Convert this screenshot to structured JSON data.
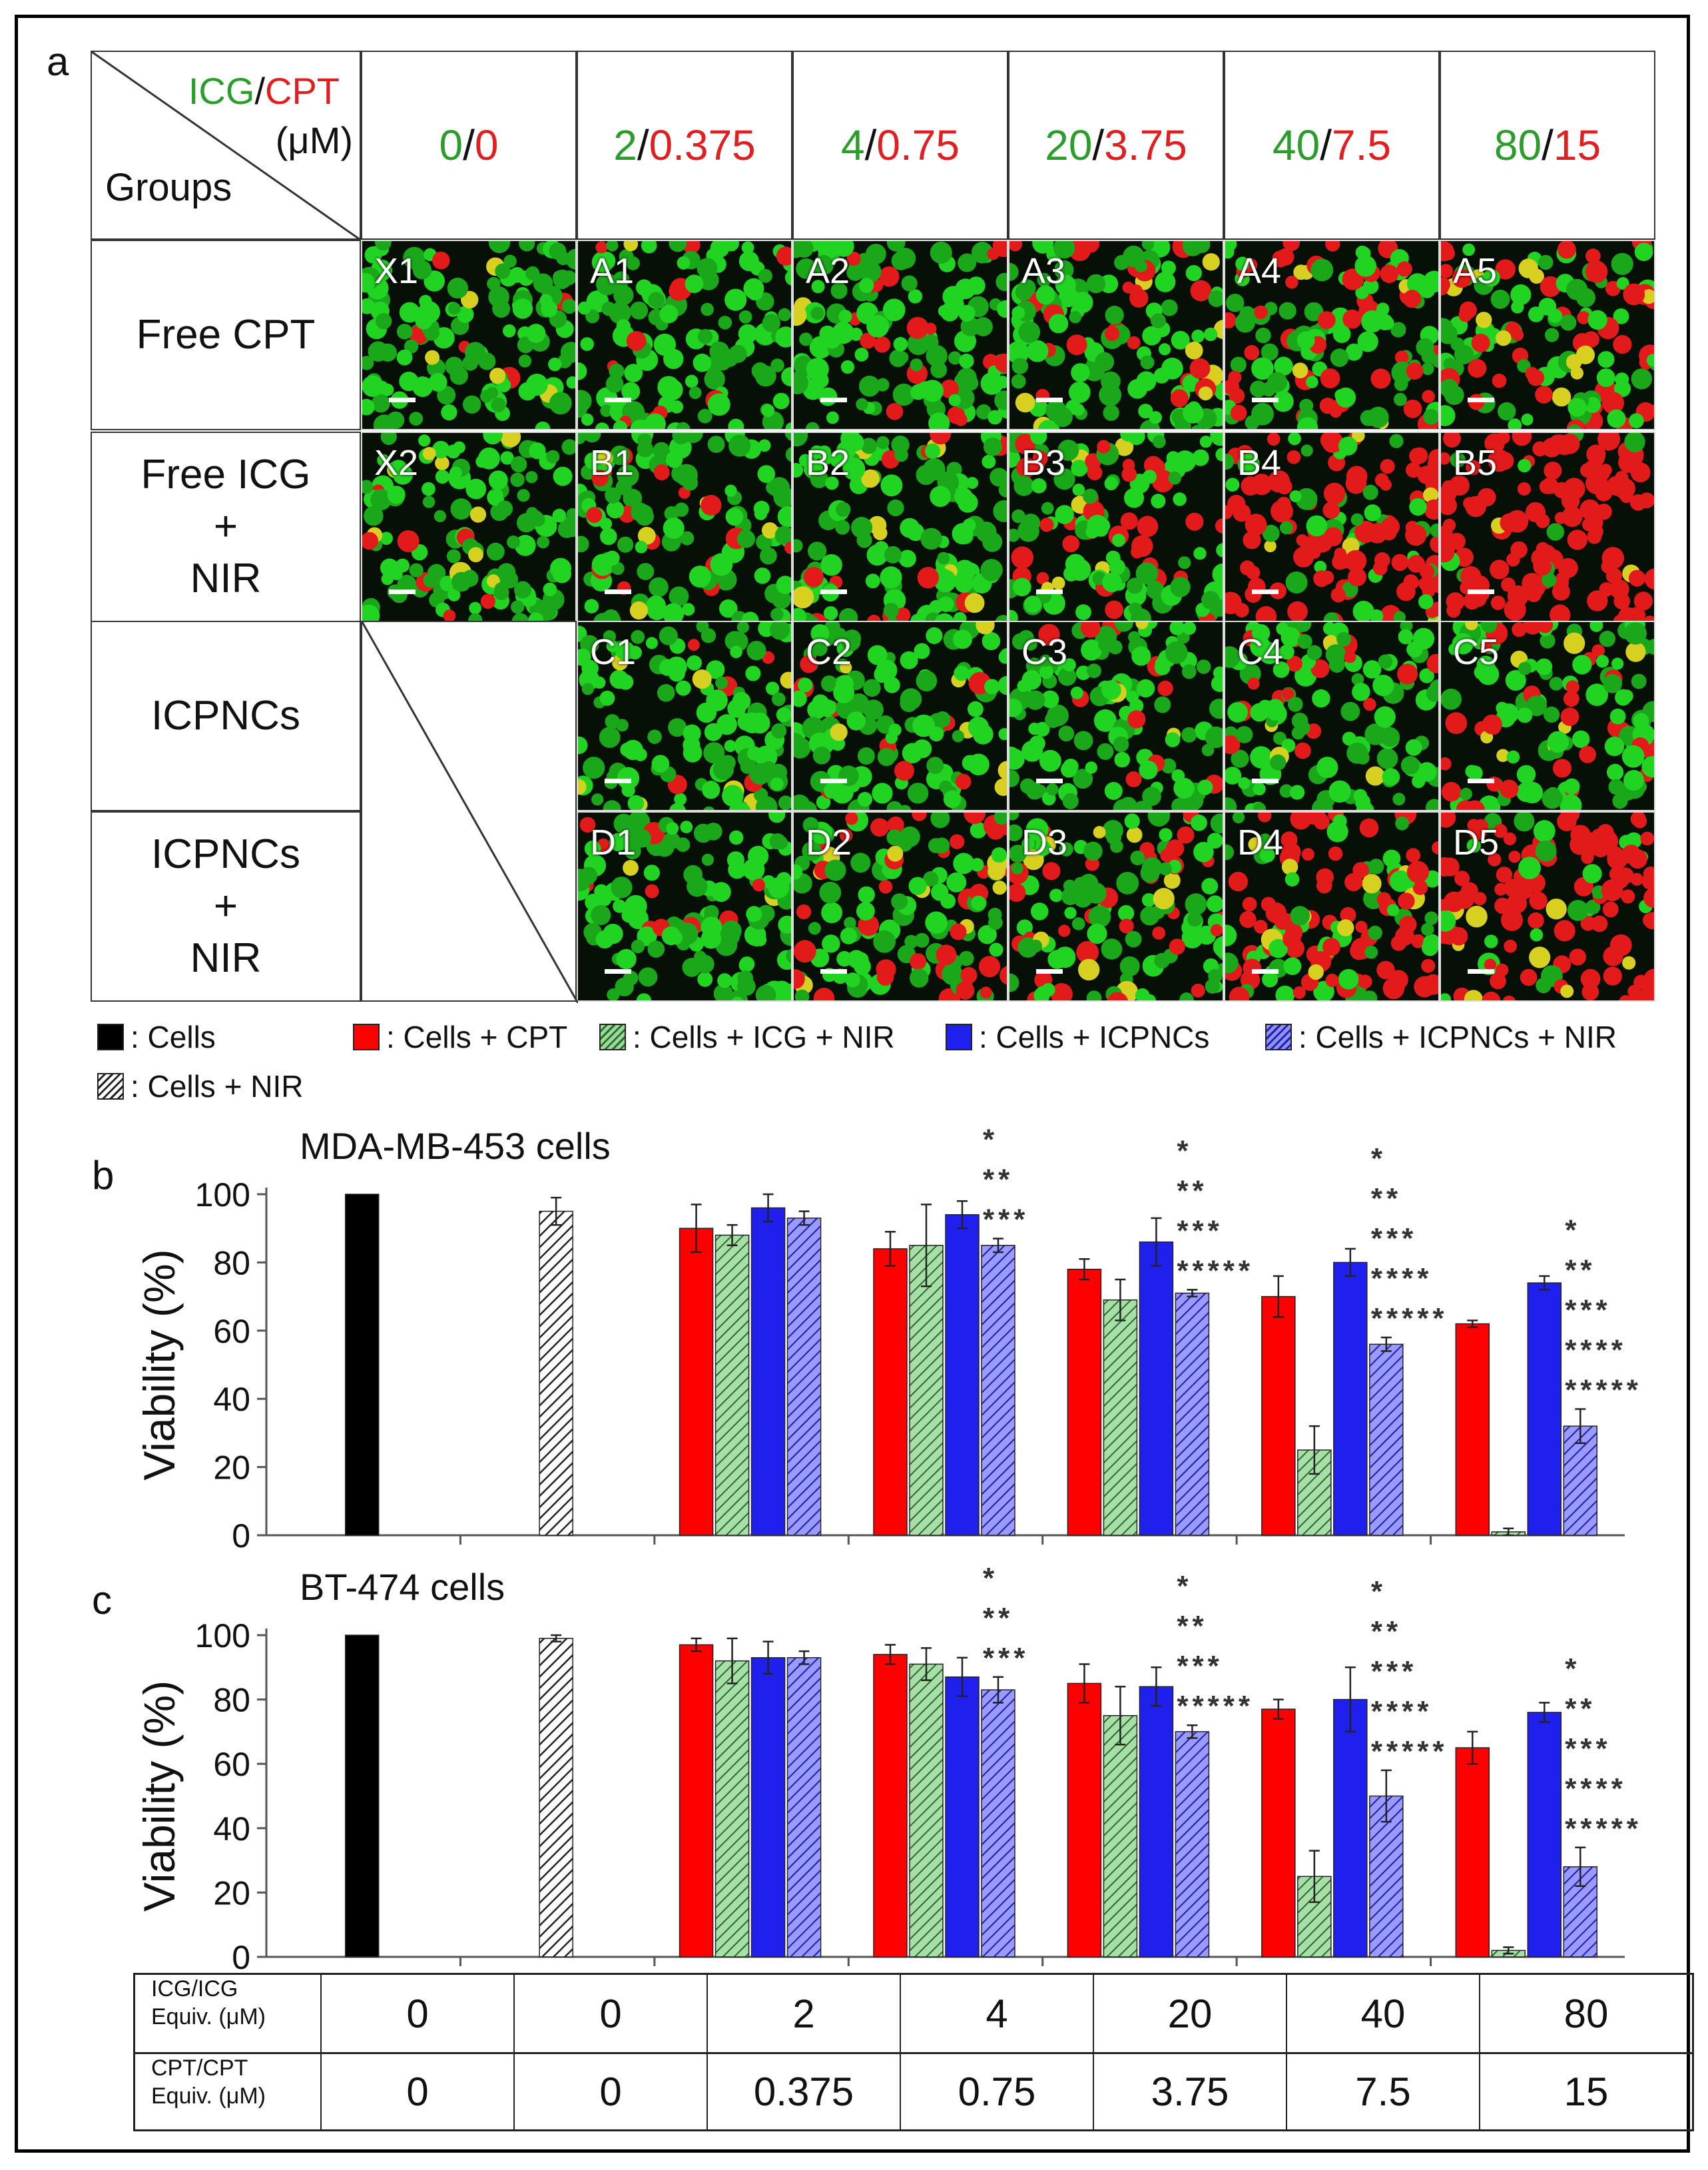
{
  "panel_labels": {
    "a": "a",
    "b": "b",
    "c": "c"
  },
  "grid": {
    "corner": {
      "icg": "ICG",
      "slash": "/",
      "cpt": "CPT",
      "unit": "(μM)",
      "groups": "Groups"
    },
    "columns": [
      {
        "icg": "0",
        "cpt": "0"
      },
      {
        "icg": "2",
        "cpt": "0.375"
      },
      {
        "icg": "4",
        "cpt": "0.75"
      },
      {
        "icg": "20",
        "cpt": "3.75"
      },
      {
        "icg": "40",
        "cpt": "7.5"
      },
      {
        "icg": "80",
        "cpt": "15"
      }
    ],
    "rows": [
      {
        "label_lines": [
          "Free CPT"
        ],
        "tags": [
          "X1",
          "A1",
          "A2",
          "A3",
          "A4",
          "A5"
        ]
      },
      {
        "label_lines": [
          "Free ICG",
          "+",
          "NIR"
        ],
        "tags": [
          "X2",
          "B1",
          "B2",
          "B3",
          "B4",
          "B5"
        ]
      },
      {
        "label_lines": [
          "ICPNCs"
        ],
        "tags": [
          "",
          "C1",
          "C2",
          "C3",
          "C4",
          "C5"
        ]
      },
      {
        "label_lines": [
          "ICPNCs",
          "+",
          "NIR"
        ],
        "tags": [
          "",
          "D1",
          "D2",
          "D3",
          "D4",
          "D5"
        ]
      }
    ],
    "red_fraction": [
      [
        0.04,
        0.1,
        0.14,
        0.22,
        0.35,
        0.4
      ],
      [
        0.06,
        0.08,
        0.12,
        0.3,
        0.65,
        0.9
      ],
      [
        null,
        0.05,
        0.06,
        0.1,
        0.12,
        0.25
      ],
      [
        null,
        0.08,
        0.25,
        0.35,
        0.5,
        0.75
      ]
    ]
  },
  "legend": {
    "cells": ": Cells",
    "cells_cpt": ": Cells + CPT",
    "cells_icg_nir": ": Cells + ICG + NIR",
    "cells_icpncs": ": Cells + ICPNCs",
    "cells_icpncs_nir": ": Cells + ICPNCs + NIR",
    "cells_nir": ": Cells + NIR"
  },
  "colors": {
    "black": "#000000",
    "cpt": "#ff0000",
    "icg": "#9cd99c",
    "icpnc": "#2020ee",
    "icpnc_nir": "#8f8fff",
    "nir": "#bbbbbb"
  },
  "table": {
    "row1_label": [
      "ICG/ICG",
      "Equiv. (μM)"
    ],
    "row2_label": [
      "CPT/CPT",
      "Equiv. (μM)"
    ],
    "row1": [
      "0",
      "0",
      "2",
      "4",
      "20",
      "40",
      "80"
    ],
    "row2": [
      "0",
      "0",
      "0.375",
      "0.75",
      "3.75",
      "7.5",
      "15"
    ]
  },
  "chart_data": [
    {
      "type": "bar",
      "title": "MDA-MB-453 cells",
      "ylabel": "Viability (%)",
      "ylim": [
        0,
        100
      ],
      "yticks": [
        0,
        20,
        40,
        60,
        80,
        100
      ],
      "groups": [
        {
          "bars": [
            {
              "series": "Cells",
              "value": 100,
              "err": 0
            }
          ]
        },
        {
          "bars": [
            {
              "series": "Cells + NIR",
              "value": 95,
              "err": 4
            }
          ]
        },
        {
          "bars": [
            {
              "series": "Cells + CPT",
              "value": 90,
              "err": 7
            },
            {
              "series": "Cells + ICG + NIR",
              "value": 88,
              "err": 3
            },
            {
              "series": "Cells + ICPNCs",
              "value": 96,
              "err": 4
            },
            {
              "series": "Cells + ICPNCs + NIR",
              "value": 93,
              "err": 2
            }
          ],
          "stars": []
        },
        {
          "bars": [
            {
              "series": "Cells + CPT",
              "value": 84,
              "err": 5
            },
            {
              "series": "Cells + ICG + NIR",
              "value": 85,
              "err": 12
            },
            {
              "series": "Cells + ICPNCs",
              "value": 94,
              "err": 4
            },
            {
              "series": "Cells + ICPNCs + NIR",
              "value": 85,
              "err": 2
            }
          ],
          "stars": [
            "*",
            "**",
            "***"
          ]
        },
        {
          "bars": [
            {
              "series": "Cells + CPT",
              "value": 78,
              "err": 3
            },
            {
              "series": "Cells + ICG + NIR",
              "value": 69,
              "err": 6
            },
            {
              "series": "Cells + ICPNCs",
              "value": 86,
              "err": 7
            },
            {
              "series": "Cells + ICPNCs + NIR",
              "value": 71,
              "err": 1
            }
          ],
          "stars": [
            "*",
            "**",
            "***",
            "*****"
          ]
        },
        {
          "bars": [
            {
              "series": "Cells + CPT",
              "value": 70,
              "err": 6
            },
            {
              "series": "Cells + ICG + NIR",
              "value": 25,
              "err": 7
            },
            {
              "series": "Cells + ICPNCs",
              "value": 80,
              "err": 4
            },
            {
              "series": "Cells + ICPNCs + NIR",
              "value": 56,
              "err": 2
            }
          ],
          "stars": [
            "*",
            "**",
            "***",
            "****",
            "*****"
          ]
        },
        {
          "bars": [
            {
              "series": "Cells + CPT",
              "value": 62,
              "err": 1
            },
            {
              "series": "Cells + ICG + NIR",
              "value": 1,
              "err": 1
            },
            {
              "series": "Cells + ICPNCs",
              "value": 74,
              "err": 2
            },
            {
              "series": "Cells + ICPNCs + NIR",
              "value": 32,
              "err": 5
            }
          ],
          "stars": [
            "*",
            "**",
            "***",
            "****",
            "*****"
          ]
        }
      ]
    },
    {
      "type": "bar",
      "title": "BT-474 cells",
      "ylabel": "Viability (%)",
      "ylim": [
        0,
        100
      ],
      "yticks": [
        0,
        20,
        40,
        60,
        80,
        100
      ],
      "groups": [
        {
          "bars": [
            {
              "series": "Cells",
              "value": 100,
              "err": 0
            }
          ]
        },
        {
          "bars": [
            {
              "series": "Cells + NIR",
              "value": 99,
              "err": 1
            }
          ]
        },
        {
          "bars": [
            {
              "series": "Cells + CPT",
              "value": 97,
              "err": 2
            },
            {
              "series": "Cells + ICG + NIR",
              "value": 92,
              "err": 7
            },
            {
              "series": "Cells + ICPNCs",
              "value": 93,
              "err": 5
            },
            {
              "series": "Cells + ICPNCs + NIR",
              "value": 93,
              "err": 2
            }
          ],
          "stars": []
        },
        {
          "bars": [
            {
              "series": "Cells + CPT",
              "value": 94,
              "err": 3
            },
            {
              "series": "Cells + ICG + NIR",
              "value": 91,
              "err": 5
            },
            {
              "series": "Cells + ICPNCs",
              "value": 87,
              "err": 6
            },
            {
              "series": "Cells + ICPNCs + NIR",
              "value": 83,
              "err": 4
            }
          ],
          "stars": [
            "*",
            "**",
            "***"
          ]
        },
        {
          "bars": [
            {
              "series": "Cells + CPT",
              "value": 85,
              "err": 6
            },
            {
              "series": "Cells + ICG + NIR",
              "value": 75,
              "err": 9
            },
            {
              "series": "Cells + ICPNCs",
              "value": 84,
              "err": 6
            },
            {
              "series": "Cells + ICPNCs + NIR",
              "value": 70,
              "err": 2
            }
          ],
          "stars": [
            "*",
            "**",
            "***",
            "*****"
          ]
        },
        {
          "bars": [
            {
              "series": "Cells + CPT",
              "value": 77,
              "err": 3
            },
            {
              "series": "Cells + ICG + NIR",
              "value": 25,
              "err": 8
            },
            {
              "series": "Cells + ICPNCs",
              "value": 80,
              "err": 10
            },
            {
              "series": "Cells + ICPNCs + NIR",
              "value": 50,
              "err": 8
            }
          ],
          "stars": [
            "*",
            "**",
            "***",
            "****",
            "*****"
          ]
        },
        {
          "bars": [
            {
              "series": "Cells + CPT",
              "value": 65,
              "err": 5
            },
            {
              "series": "Cells + ICG + NIR",
              "value": 2,
              "err": 1
            },
            {
              "series": "Cells + ICPNCs",
              "value": 76,
              "err": 3
            },
            {
              "series": "Cells + ICPNCs + NIR",
              "value": 28,
              "err": 6
            }
          ],
          "stars": [
            "*",
            "**",
            "***",
            "****",
            "*****"
          ]
        }
      ]
    }
  ]
}
